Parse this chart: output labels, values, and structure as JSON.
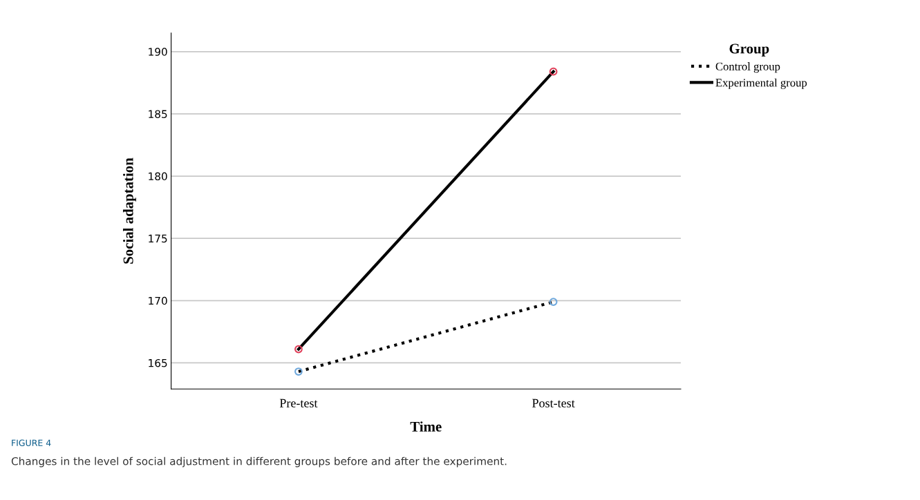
{
  "chart_data": {
    "type": "line",
    "xlabel": "Time",
    "ylabel": "Social adaptation",
    "legend_title": "Group",
    "categories": [
      "Pre-test",
      "Post-test"
    ],
    "series": [
      {
        "name": "Control group",
        "color": "#000000",
        "colors": [
          "#6fa8dc",
          "#6fa8dc"
        ],
        "line_style": "dotted",
        "values": [
          164.3,
          169.9
        ]
      },
      {
        "name": "Experimental group",
        "color": "#000000",
        "colors": [
          "#e0405a",
          "#e0405a"
        ],
        "line_style": "solid",
        "values": [
          166.1,
          188.4
        ]
      }
    ],
    "ylim": [
      162.9,
      191.5
    ],
    "yticks": [
      165,
      170,
      175,
      180,
      185,
      190
    ],
    "grid": "y",
    "legend": "top right",
    "marker": "circle",
    "annotations": [
      "FIGURE 4",
      "Changes in the level of social adjustment in different groups before and after the experiment."
    ]
  }
}
